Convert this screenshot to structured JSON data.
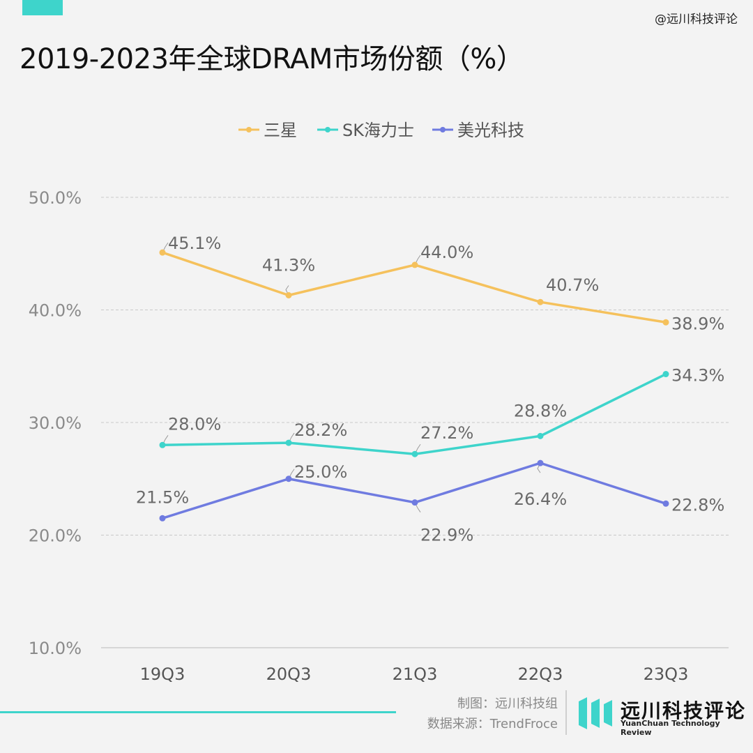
{
  "header": {
    "title": "2019-2023年全球DRAM市场份额（%）",
    "watermark": "@远川科技评论"
  },
  "colors": {
    "accent": "#3ed4cb",
    "samsung": "#f5c15c",
    "sk_hynix": "#3ed4cb",
    "micron": "#6f7be0",
    "grid": "#c8c8c8",
    "background": "#f3f3f3"
  },
  "chart_data": {
    "type": "line",
    "title": "",
    "xlabel": "",
    "ylabel": "",
    "categories": [
      "19Q3",
      "20Q3",
      "21Q3",
      "22Q3",
      "23Q3"
    ],
    "y_ticks": [
      "10.0%",
      "20.0%",
      "30.0%",
      "40.0%",
      "50.0%"
    ],
    "ylim": [
      10,
      50
    ],
    "grid": "horizontal dashed",
    "legend_position": "top-center",
    "series": [
      {
        "name": "三星",
        "values": [
          45.1,
          41.3,
          44.0,
          40.7,
          38.9
        ],
        "labels": [
          "45.1%",
          "41.3%",
          "44.0%",
          "40.7%",
          "38.9%"
        ]
      },
      {
        "name": "SK海力士",
        "values": [
          28.0,
          28.2,
          27.2,
          28.8,
          34.3
        ],
        "labels": [
          "28.0%",
          "28.2%",
          "27.2%",
          "28.8%",
          "34.3%"
        ]
      },
      {
        "name": "美光科技",
        "values": [
          21.5,
          25.0,
          22.9,
          26.4,
          22.8
        ],
        "labels": [
          "21.5%",
          "25.0%",
          "22.9%",
          "26.4%",
          "22.8%"
        ]
      }
    ]
  },
  "footer": {
    "credit_line1": "制图：远川科技组",
    "credit_line2": "数据来源：TrendFroce",
    "brand_name": "远川科技评论",
    "brand_english": "YuanChuan Technology Review"
  }
}
